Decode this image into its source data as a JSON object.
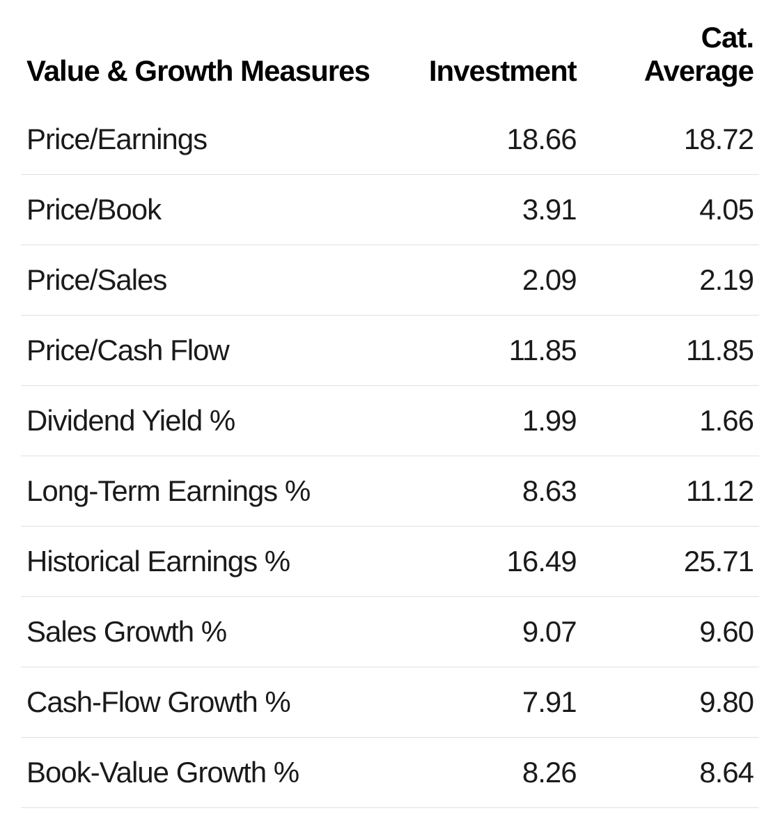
{
  "table": {
    "type": "table",
    "background_color": "#ffffff",
    "text_color": "#1a1a1a",
    "header_color": "#000000",
    "border_color": "#e0e0e0",
    "header_fontsize": 42,
    "body_fontsize": 42,
    "header_fontweight": 700,
    "body_fontweight": 400,
    "column_widths": [
      "52%",
      "24%",
      "24%"
    ],
    "columns": [
      {
        "label": "Value & Growth Measures",
        "align": "left"
      },
      {
        "label": "Investment",
        "align": "right"
      },
      {
        "label_line1": "Cat.",
        "label_line2": "Average",
        "align": "right"
      }
    ],
    "rows": [
      {
        "measure": "Price/Earnings",
        "investment": "18.66",
        "cat_average": "18.72"
      },
      {
        "measure": "Price/Book",
        "investment": "3.91",
        "cat_average": "4.05"
      },
      {
        "measure": "Price/Sales",
        "investment": "2.09",
        "cat_average": "2.19"
      },
      {
        "measure": "Price/Cash Flow",
        "investment": "11.85",
        "cat_average": "11.85"
      },
      {
        "measure": "Dividend Yield %",
        "investment": "1.99",
        "cat_average": "1.66"
      },
      {
        "measure": "Long-Term Earnings %",
        "investment": "8.63",
        "cat_average": "11.12"
      },
      {
        "measure": "Historical Earnings %",
        "investment": "16.49",
        "cat_average": "25.71"
      },
      {
        "measure": "Sales Growth %",
        "investment": "9.07",
        "cat_average": "9.60"
      },
      {
        "measure": "Cash-Flow Growth %",
        "investment": "7.91",
        "cat_average": "9.80"
      },
      {
        "measure": "Book-Value Growth %",
        "investment": "8.26",
        "cat_average": "8.64"
      }
    ]
  }
}
